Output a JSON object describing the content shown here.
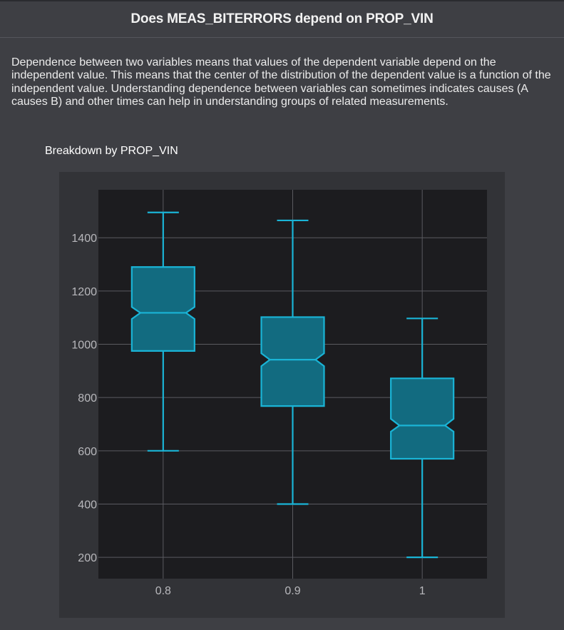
{
  "page": {
    "title": "Does MEAS_BITERRORS depend on PROP_VIN",
    "description": "Dependence between two variables means that values of the dependent variable depend on the independent value. This means that the center of the distribution of the dependent value is a function of the independent value. Understanding dependence between variables can sometimes indicates causes (A causes B) and other times can help in understanding groups of related measurements.",
    "subtitle": "Breakdown by PROP_VIN"
  },
  "colors": {
    "page_background": "#3e3f44",
    "panel_background": "#323337",
    "plot_background": "#1c1c1f",
    "grid": "#5a5a60",
    "box_fill": "#126b80",
    "box_stroke": "#1ab4d6",
    "tick_text": "#b8b8bc"
  },
  "chart_data": {
    "type": "box",
    "notched": true,
    "title": "",
    "xlabel": "",
    "ylabel": "",
    "categories": [
      "0.8",
      "0.9",
      "1"
    ],
    "ylim": [
      120,
      1580
    ],
    "yticks": [
      200,
      400,
      600,
      800,
      1000,
      1200,
      1400
    ],
    "grid": true,
    "boxes": [
      {
        "category": "0.8",
        "whisker_low": 600,
        "q1": 975,
        "median": 1118,
        "q3": 1290,
        "whisker_high": 1495,
        "notch_low": 1095,
        "notch_high": 1140
      },
      {
        "category": "0.9",
        "whisker_low": 400,
        "q1": 768,
        "median": 942,
        "q3": 1102,
        "whisker_high": 1465,
        "notch_low": 918,
        "notch_high": 966
      },
      {
        "category": "1",
        "whisker_low": 200,
        "q1": 570,
        "median": 695,
        "q3": 872,
        "whisker_high": 1097,
        "notch_low": 672,
        "notch_high": 720
      }
    ]
  }
}
